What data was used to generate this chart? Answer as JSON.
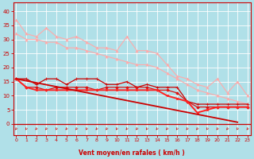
{
  "bg_color": "#b0e0e8",
  "grid_color": "#ffffff",
  "xlabel": "Vent moyen/en rafales ( km/h )",
  "xlim": [
    -0.3,
    23.3
  ],
  "ylim": [
    -4,
    43
  ],
  "yticks": [
    0,
    5,
    10,
    15,
    20,
    25,
    30,
    35,
    40
  ],
  "xticks": [
    0,
    1,
    2,
    3,
    4,
    5,
    6,
    7,
    8,
    9,
    10,
    11,
    12,
    13,
    14,
    15,
    16,
    17,
    18,
    19,
    20,
    21,
    22,
    23
  ],
  "x": [
    0,
    1,
    2,
    3,
    4,
    5,
    6,
    7,
    8,
    9,
    10,
    11,
    12,
    13,
    14,
    15,
    16,
    17,
    18,
    19,
    20,
    21,
    22,
    23
  ],
  "series": [
    {
      "color": "#ffaaaa",
      "lw": 0.8,
      "marker": "^",
      "ms": 2.2,
      "zorder": 3,
      "y": [
        37,
        32,
        31,
        34,
        31,
        30,
        31,
        29,
        27,
        27,
        26,
        31,
        26,
        26,
        25,
        21,
        17,
        16,
        14,
        13,
        16,
        11,
        15,
        10
      ]
    },
    {
      "color": "#ffaaaa",
      "lw": 0.8,
      "marker": "^",
      "ms": 2.2,
      "zorder": 3,
      "y": [
        32,
        30,
        30,
        29,
        29,
        27,
        27,
        26,
        25,
        24,
        23,
        22,
        21,
        21,
        20,
        18,
        16,
        14,
        12,
        11,
        10,
        9,
        8,
        7
      ]
    },
    {
      "color": "#cc0000",
      "lw": 1.3,
      "marker": null,
      "ms": 0,
      "zorder": 4,
      "y": [
        16.0,
        15.3,
        14.6,
        13.9,
        13.2,
        12.5,
        11.8,
        11.1,
        10.4,
        9.7,
        9.0,
        8.3,
        7.6,
        6.9,
        6.2,
        5.5,
        4.8,
        4.1,
        3.4,
        2.7,
        2.0,
        1.3,
        0.6,
        null
      ]
    },
    {
      "color": "#cc0000",
      "lw": 0.9,
      "marker": "+",
      "ms": 3.5,
      "zorder": 3,
      "y": [
        16,
        16,
        14,
        16,
        16,
        14,
        16,
        16,
        16,
        14,
        14,
        15,
        13,
        14,
        13,
        13,
        13,
        8,
        7,
        7,
        7,
        7,
        7,
        7
      ]
    },
    {
      "color": "#dd1111",
      "lw": 0.9,
      "marker": "D",
      "ms": 1.8,
      "zorder": 3,
      "y": [
        16,
        13,
        13,
        12,
        13,
        13,
        13,
        13,
        12,
        13,
        13,
        13,
        13,
        13,
        12,
        12,
        11,
        8,
        6,
        6,
        6,
        6,
        6,
        6
      ]
    },
    {
      "color": "#ff2222",
      "lw": 1.4,
      "marker": "s",
      "ms": 1.5,
      "zorder": 3,
      "y": [
        16,
        13,
        12,
        12,
        12,
        12,
        12,
        12,
        12,
        12,
        12,
        12,
        12,
        12,
        12,
        10,
        9,
        8,
        4,
        5,
        6,
        6,
        6,
        6
      ]
    }
  ],
  "arrow_color": "#cc0000",
  "xlabel_fontsize": 5.5,
  "xlabel_fontweight": "bold",
  "tick_fontsize_x": 4.5,
  "tick_fontsize_y": 5.0
}
